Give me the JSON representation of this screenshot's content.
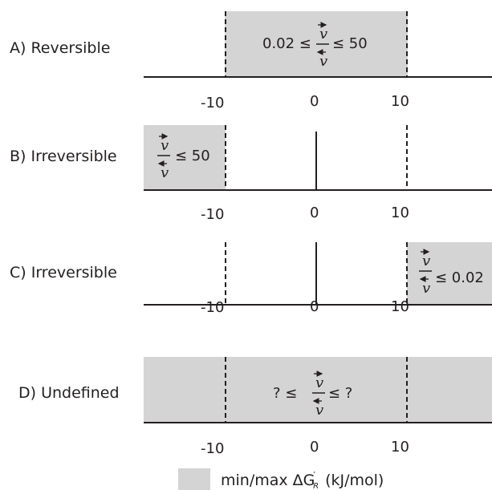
{
  "colors": {
    "shade": "#d4d4d4",
    "ink": "#231f20"
  },
  "scale": {
    "ticks": [
      "-10",
      "0",
      "10"
    ]
  },
  "variable": "v",
  "panels": [
    {
      "label": "A) Reversible",
      "shade": "between",
      "solid_zero": false,
      "condition": {
        "prefix": "0.02 ≤",
        "suffix": "≤ 50"
      }
    },
    {
      "label": "B) Irreversible",
      "shade": "left",
      "solid_zero": true,
      "condition": {
        "prefix": "",
        "suffix": "≤ 50"
      }
    },
    {
      "label": "C) Irreversible",
      "shade": "right",
      "solid_zero": true,
      "condition": {
        "prefix": "",
        "suffix": "≤ 0.02"
      }
    },
    {
      "label": "D) Undefined",
      "shade": "all",
      "solid_zero": false,
      "condition": {
        "prefix": "? ≤",
        "suffix": "≤ ?"
      }
    }
  ],
  "legend": {
    "text_main": "min/max ΔG",
    "text_sup": "′",
    "text_sub": "R",
    "text_unit": "(kJ/mol)"
  }
}
